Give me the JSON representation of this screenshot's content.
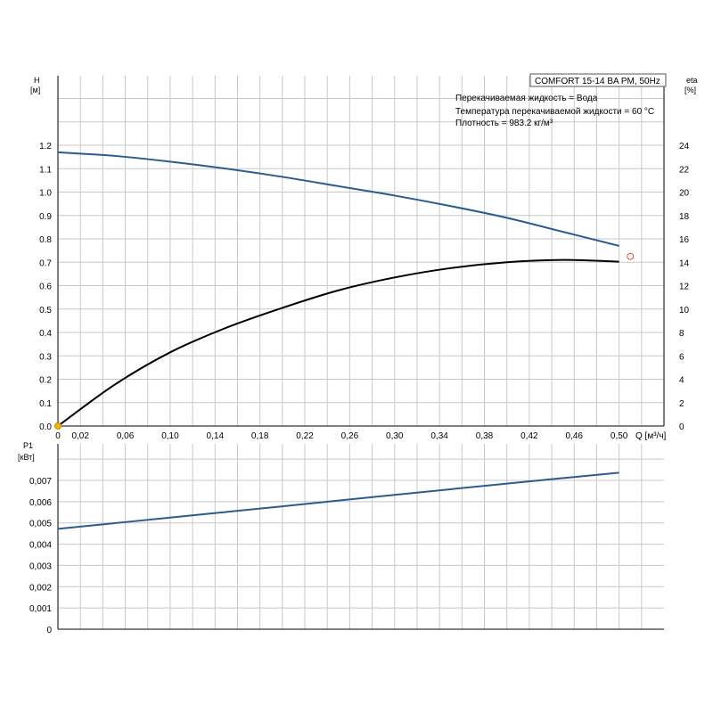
{
  "title_box": "COMFORT 15-14 BA PM, 50Hz",
  "info_lines": [
    "Перекачиваемая жидкость = Вода",
    "Температура перекачиваемой жидкости = 60 °C",
    "Плотность = 983.2 кг/м³"
  ],
  "colors": {
    "head_curve": "#2a5c8e",
    "eta_curve": "#000000",
    "power_curve": "#2a5c8e",
    "bep_marker": "#e05050",
    "origin_marker": "#f5b800",
    "grid": "#c8c8c8"
  },
  "chart_data": [
    {
      "type": "line",
      "name": "top",
      "xlabel": "Q [м³/ч]",
      "ylabel_left": [
        "H",
        "[м]"
      ],
      "ylabel_right": [
        "eta",
        "[%]"
      ],
      "xlim": [
        0,
        0.54
      ],
      "ylim_left": [
        0,
        1.2
      ],
      "ylim_right": [
        0,
        24
      ],
      "x_ticks": [
        "0",
        "0,02",
        "0,06",
        "0,10",
        "0,14",
        "0,18",
        "0,22",
        "0,26",
        "0,30",
        "0,34",
        "0,38",
        "0,42",
        "0,46",
        "0,50"
      ],
      "x_tick_values": [
        0,
        0.02,
        0.06,
        0.1,
        0.14,
        0.18,
        0.22,
        0.26,
        0.3,
        0.34,
        0.38,
        0.42,
        0.46,
        0.5
      ],
      "y_left_ticks": [
        "0.0",
        "0.1",
        "0.2",
        "0.3",
        "0.4",
        "0.5",
        "0.6",
        "0.7",
        "0.8",
        "0.9",
        "1.0",
        "1.1",
        "1.2"
      ],
      "y_right_ticks": [
        "0",
        "2",
        "4",
        "6",
        "8",
        "10",
        "12",
        "14",
        "16",
        "18",
        "20",
        "22",
        "24"
      ],
      "grid": true,
      "series": [
        {
          "axis": "left",
          "x": [
            0,
            0.05,
            0.1,
            0.15,
            0.2,
            0.25,
            0.3,
            0.35,
            0.4,
            0.45,
            0.5
          ],
          "y": [
            1.17,
            1.155,
            1.13,
            1.1,
            1.065,
            1.025,
            0.985,
            0.94,
            0.89,
            0.83,
            0.77
          ]
        },
        {
          "axis": "right",
          "x": [
            0,
            0.05,
            0.1,
            0.15,
            0.2,
            0.25,
            0.3,
            0.35,
            0.4,
            0.45,
            0.5
          ],
          "y": [
            0,
            3.5,
            6.3,
            8.4,
            10.1,
            11.6,
            12.7,
            13.5,
            14.0,
            14.2,
            14.05
          ]
        }
      ],
      "markers": [
        {
          "axis": "right",
          "x": 0.51,
          "y": 14.5,
          "kind": "bep"
        },
        {
          "axis": "left",
          "x": 0,
          "y": 0,
          "kind": "origin"
        }
      ]
    },
    {
      "type": "line",
      "name": "power",
      "ylabel_left": [
        "P1",
        "[кВт]"
      ],
      "xlim": [
        0,
        0.54
      ],
      "ylim": [
        0,
        0.008
      ],
      "y_ticks": [
        "0",
        "0,001",
        "0,002",
        "0,003",
        "0,004",
        "0,005",
        "0,006",
        "0,007"
      ],
      "grid": true,
      "series": [
        {
          "x": [
            0,
            0.1,
            0.2,
            0.3,
            0.4,
            0.5
          ],
          "y": [
            0.00472,
            0.00525,
            0.00578,
            0.00632,
            0.00685,
            0.00736
          ]
        }
      ]
    }
  ]
}
